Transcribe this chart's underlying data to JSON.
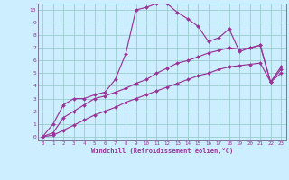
{
  "xlabel": "Windchill (Refroidissement éolien,°C)",
  "bg_color": "#cceeff",
  "line_color": "#993399",
  "grid_color": "#99cccc",
  "xlim": [
    -0.5,
    23.5
  ],
  "ylim": [
    -0.3,
    10.5
  ],
  "xticks": [
    0,
    1,
    2,
    3,
    4,
    5,
    6,
    7,
    8,
    9,
    10,
    11,
    12,
    13,
    14,
    15,
    16,
    17,
    18,
    19,
    20,
    21,
    22,
    23
  ],
  "yticks": [
    0,
    1,
    2,
    3,
    4,
    5,
    6,
    7,
    8,
    9,
    10
  ],
  "line1_x": [
    0,
    1,
    2,
    3,
    4,
    5,
    6,
    7,
    8,
    9,
    10,
    11,
    12,
    13,
    14,
    15,
    16,
    17,
    18,
    19,
    20,
    21,
    22,
    23
  ],
  "line1_y": [
    0.0,
    1.0,
    2.5,
    3.0,
    3.0,
    3.3,
    3.5,
    4.5,
    6.5,
    10.0,
    10.2,
    10.5,
    10.5,
    9.8,
    9.3,
    8.7,
    7.5,
    7.8,
    8.5,
    6.7,
    7.0,
    7.2,
    4.3,
    5.3
  ],
  "line2_x": [
    0,
    1,
    2,
    3,
    4,
    5,
    6,
    7,
    8,
    9,
    10,
    11,
    12,
    13,
    14,
    15,
    16,
    17,
    18,
    19,
    20,
    21,
    22,
    23
  ],
  "line2_y": [
    0.0,
    0.3,
    1.5,
    2.0,
    2.5,
    3.0,
    3.2,
    3.5,
    3.8,
    4.2,
    4.5,
    5.0,
    5.4,
    5.8,
    6.0,
    6.3,
    6.6,
    6.8,
    7.0,
    6.9,
    7.0,
    7.2,
    4.3,
    5.5
  ],
  "line3_x": [
    0,
    1,
    2,
    3,
    4,
    5,
    6,
    7,
    8,
    9,
    10,
    11,
    12,
    13,
    14,
    15,
    16,
    17,
    18,
    19,
    20,
    21,
    22,
    23
  ],
  "line3_y": [
    0.0,
    0.1,
    0.5,
    0.9,
    1.3,
    1.7,
    2.0,
    2.3,
    2.7,
    3.0,
    3.3,
    3.6,
    3.9,
    4.2,
    4.5,
    4.8,
    5.0,
    5.3,
    5.5,
    5.6,
    5.7,
    5.8,
    4.3,
    5.0
  ]
}
